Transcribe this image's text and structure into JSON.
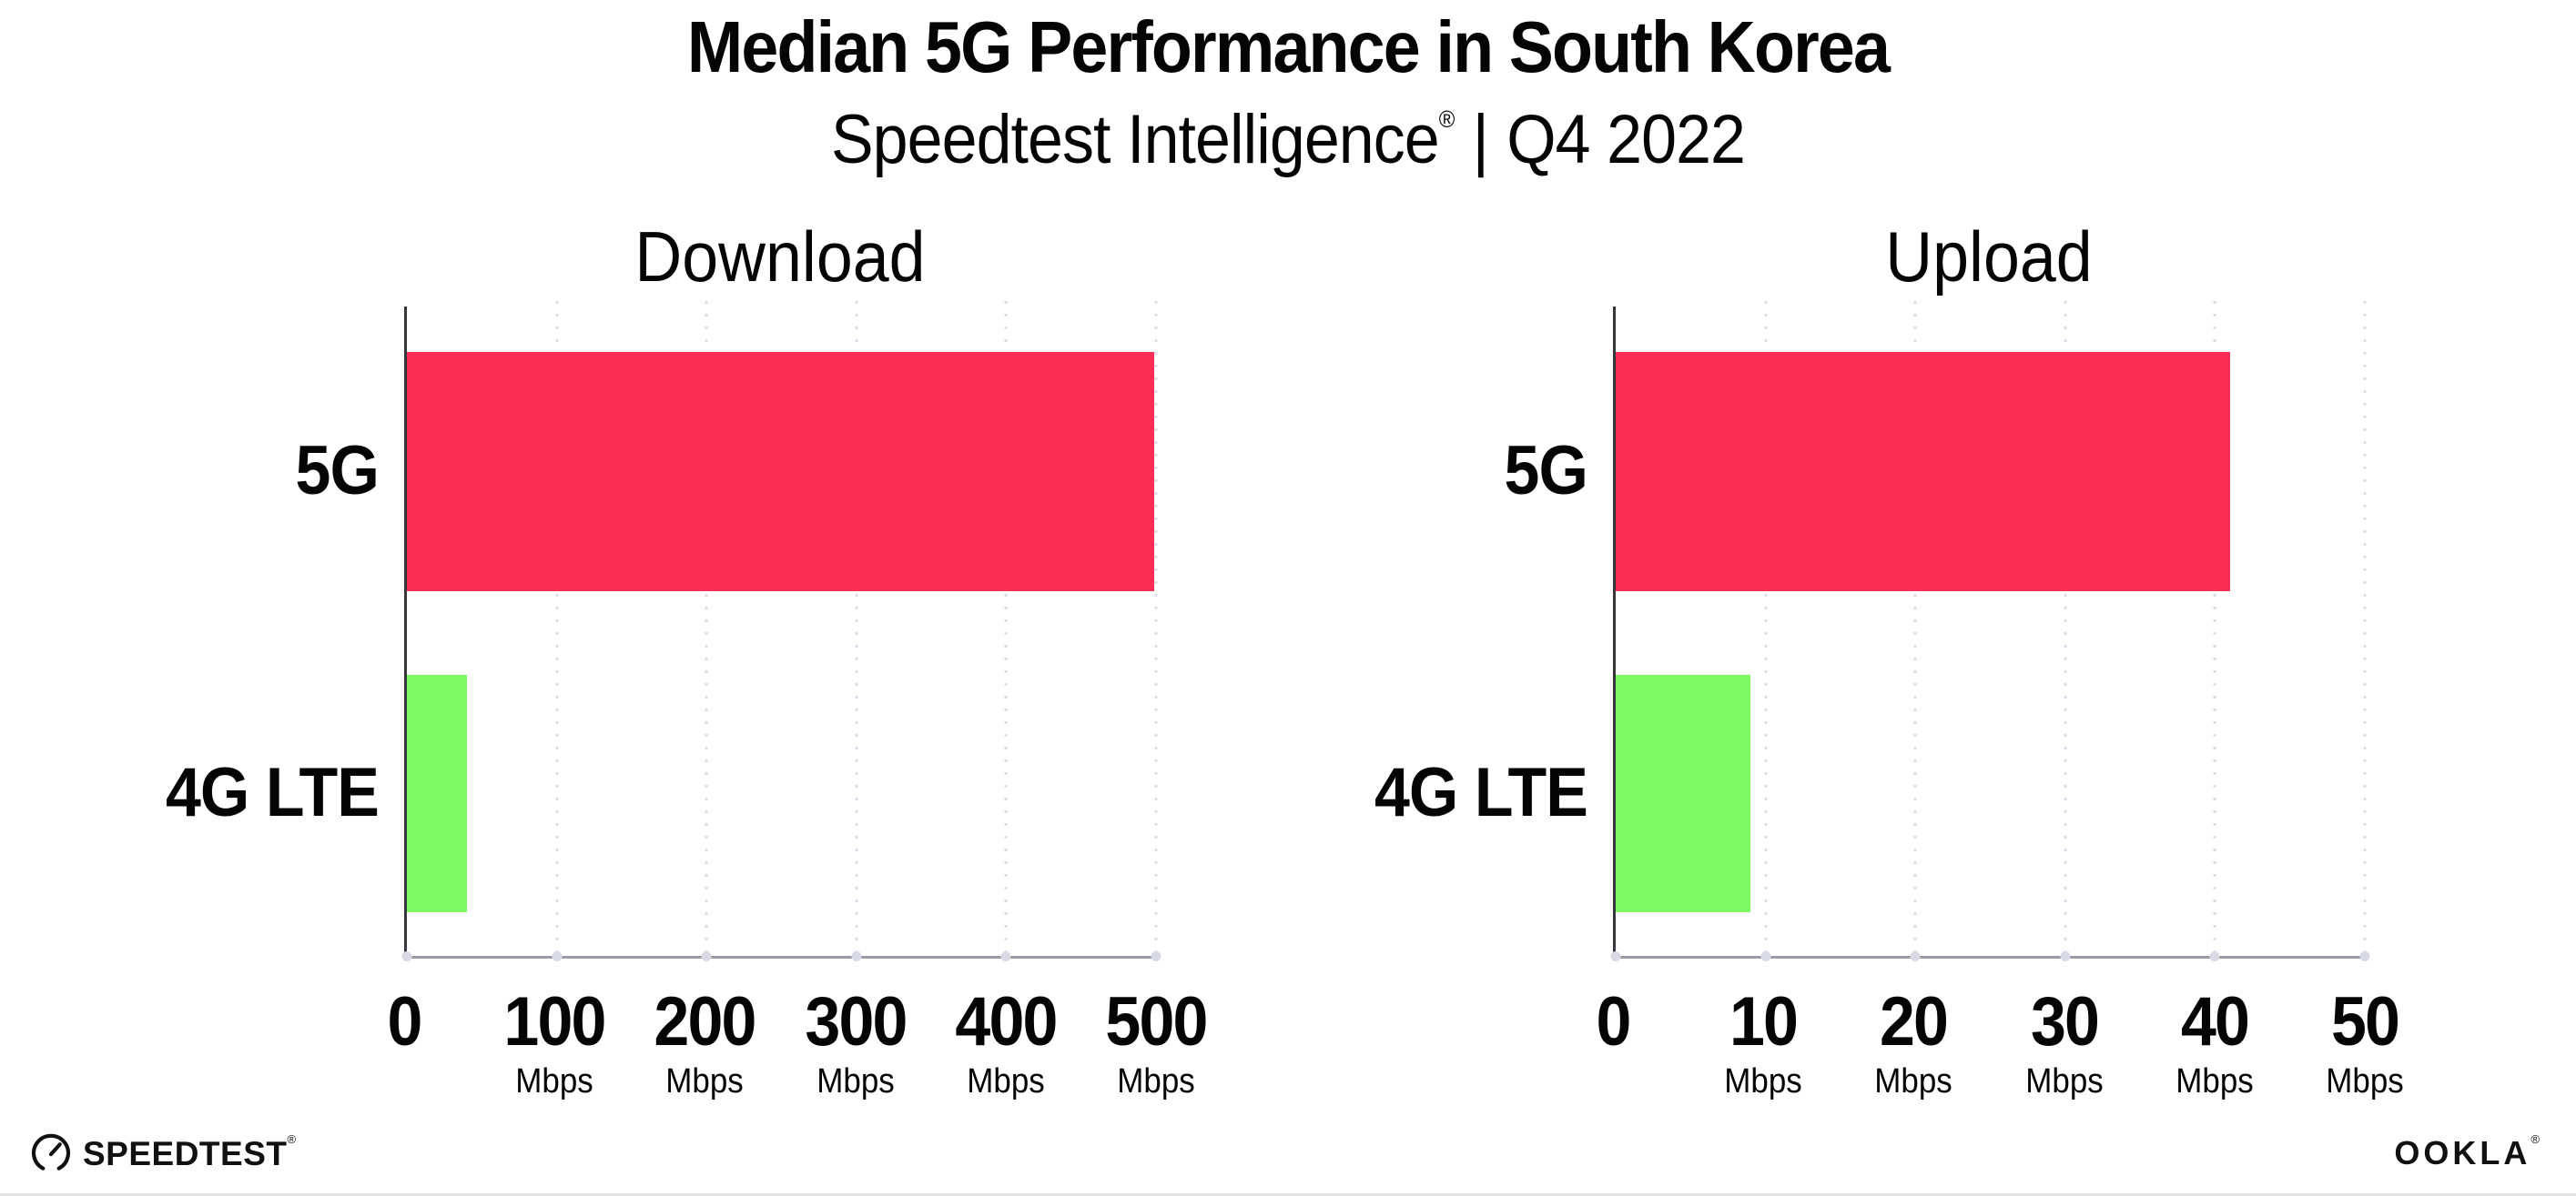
{
  "header": {
    "title": "Median 5G Performance in South Korea",
    "subtitle_brand": "Speedtest Intelligence",
    "subtitle_trademark": "®",
    "subtitle_separator": "|",
    "subtitle_period": "Q4 2022"
  },
  "chart_data": [
    {
      "type": "bar",
      "orientation": "horizontal",
      "title": "Download",
      "categories": [
        "5G",
        "4G LTE"
      ],
      "values": [
        499,
        40
      ],
      "unit": "Mbps",
      "xlim": [
        0,
        500
      ],
      "xticks": [
        0,
        100,
        200,
        300,
        400,
        500
      ],
      "tick_unit_label": "Mbps",
      "bar_colors": [
        "#FB2D55",
        "#80FA64"
      ],
      "grid": "vertical-dotted",
      "legend": "none"
    },
    {
      "type": "bar",
      "orientation": "horizontal",
      "title": "Upload",
      "categories": [
        "5G",
        "4G LTE"
      ],
      "values": [
        41,
        9
      ],
      "unit": "Mbps",
      "xlim": [
        0,
        50
      ],
      "xticks": [
        0,
        10,
        20,
        30,
        40,
        50
      ],
      "tick_unit_label": "Mbps",
      "bar_colors": [
        "#FB2D55",
        "#80FA64"
      ],
      "grid": "vertical-dotted",
      "legend": "none"
    }
  ],
  "footer": {
    "speedtest_wordmark": "SPEEDTEST",
    "speedtest_trademark": "®",
    "ookla_wordmark": "OOKLA",
    "ookla_trademark": "®"
  },
  "colors": {
    "bar_5g": "#FB2D55",
    "bar_4g_lte": "#80FA64",
    "gridline": "#DCDDE8",
    "x_axis": "#9B9BA4",
    "y_axis": "#37373B",
    "text": "#050505",
    "logo": "#111111"
  }
}
